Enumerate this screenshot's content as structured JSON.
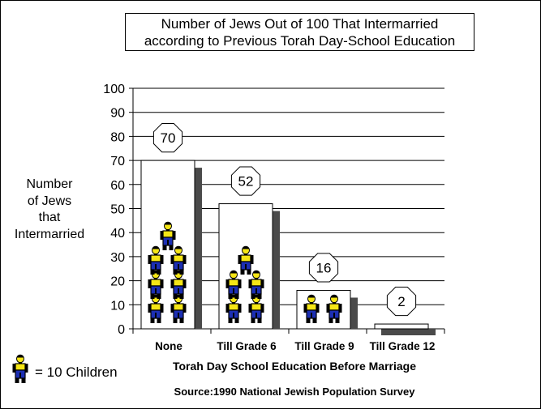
{
  "title_lines": [
    "Number of Jews Out of 100 That Intermarried",
    "according to Previous Torah Day-School Education"
  ],
  "legend": {
    "text": "= 10 Children",
    "icon": "child-figure-icon"
  },
  "source": "Source:1990 National Jewish Population Survey",
  "colors": {
    "bar_fill": "#ffffff",
    "bar_shadow": "#4a4a4a",
    "gridline": "#000000",
    "figure_shirt": "#f5e616",
    "figure_pants": "#1c2fb4",
    "figure_outline": "#000000"
  },
  "chart_data": {
    "type": "bar",
    "title": "Number of Jews Out of 100 That Intermarried according to Previous Torah Day-School Education",
    "xlabel": "Torah Day School Education Before Marriage",
    "ylabel_lines": [
      "Number",
      "of Jews",
      "that",
      "Intermarried"
    ],
    "categories": [
      "None",
      "Till Grade 6",
      "Till Grade 9",
      "Till Grade 12"
    ],
    "values": [
      70,
      52,
      16,
      2
    ],
    "data_labels": [
      "70",
      "52",
      "16",
      "2"
    ],
    "ylim": [
      0,
      100
    ],
    "yticks": [
      "0",
      "10",
      "20",
      "30",
      "40",
      "50",
      "60",
      "70",
      "80",
      "90",
      "100"
    ],
    "grid": true,
    "pictograph_unit": 10
  }
}
